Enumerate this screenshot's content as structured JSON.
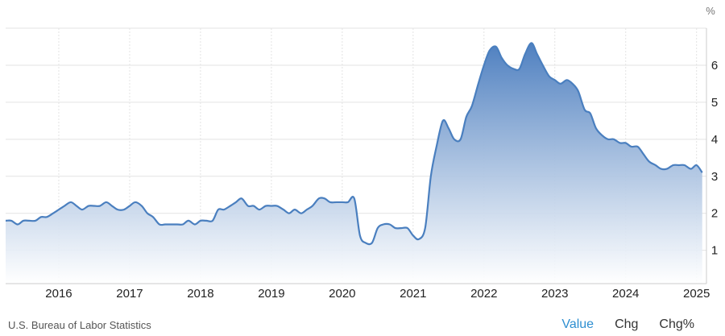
{
  "unit": "%",
  "source": "U.S. Bureau of Labor Statistics",
  "tabs": [
    {
      "label": "Value",
      "active": true
    },
    {
      "label": "Chg",
      "active": false
    },
    {
      "label": "Chg%",
      "active": false
    }
  ],
  "colors": {
    "line": "#4a7fbf",
    "area_top": "#4f80c0",
    "area_bottom": "#ffffff",
    "grid": "#e3e3e3",
    "active_tab": "#2e8fd1"
  },
  "chart_data": {
    "type": "area",
    "title": "",
    "xlabel": "",
    "ylabel": "",
    "grid": true,
    "xlim": [
      2015.25,
      2025.14
    ],
    "ylim": [
      0.1,
      7.0
    ],
    "x_ticks": [
      2016,
      2017,
      2018,
      2019,
      2020,
      2021,
      2022,
      2023,
      2024,
      2025
    ],
    "x_tick_labels": [
      "2016",
      "2017",
      "2018",
      "2019",
      "2020",
      "2021",
      "2022",
      "2023",
      "2024",
      "2025"
    ],
    "y_ticks": [
      1,
      2,
      3,
      4,
      5,
      6
    ],
    "y_tick_labels": [
      "1",
      "2",
      "3",
      "4",
      "5",
      "6"
    ],
    "series": [
      {
        "x": [
          2015.25,
          2015.33,
          2015.42,
          2015.5,
          2015.58,
          2015.67,
          2015.75,
          2015.83,
          2015.92,
          2016.0,
          2016.08,
          2016.17,
          2016.25,
          2016.33,
          2016.42,
          2016.5,
          2016.58,
          2016.67,
          2016.75,
          2016.83,
          2016.92,
          2017.0,
          2017.08,
          2017.17,
          2017.25,
          2017.33,
          2017.42,
          2017.5,
          2017.58,
          2017.67,
          2017.75,
          2017.83,
          2017.92,
          2018.0,
          2018.08,
          2018.17,
          2018.25,
          2018.33,
          2018.42,
          2018.5,
          2018.58,
          2018.67,
          2018.75,
          2018.83,
          2018.92,
          2019.0,
          2019.08,
          2019.17,
          2019.25,
          2019.33,
          2019.42,
          2019.5,
          2019.58,
          2019.67,
          2019.75,
          2019.83,
          2019.92,
          2020.0,
          2020.08,
          2020.17,
          2020.25,
          2020.33,
          2020.42,
          2020.5,
          2020.58,
          2020.67,
          2020.75,
          2020.83,
          2020.92,
          2021.0,
          2021.08,
          2021.17,
          2021.25,
          2021.33,
          2021.42,
          2021.5,
          2021.58,
          2021.67,
          2021.75,
          2021.83,
          2021.92,
          2022.0,
          2022.08,
          2022.17,
          2022.25,
          2022.33,
          2022.42,
          2022.5,
          2022.58,
          2022.67,
          2022.75,
          2022.83,
          2022.92,
          2023.0,
          2023.08,
          2023.17,
          2023.25,
          2023.33,
          2023.42,
          2023.5,
          2023.58,
          2023.67,
          2023.75,
          2023.83,
          2023.92,
          2024.0,
          2024.08,
          2024.17,
          2024.25,
          2024.33,
          2024.42,
          2024.5,
          2024.58,
          2024.67,
          2024.75,
          2024.83,
          2024.92,
          2025.0,
          2025.08
        ],
        "y": [
          1.8,
          1.8,
          1.7,
          1.8,
          1.8,
          1.8,
          1.9,
          1.9,
          2.0,
          2.1,
          2.2,
          2.3,
          2.2,
          2.1,
          2.2,
          2.2,
          2.2,
          2.3,
          2.2,
          2.1,
          2.1,
          2.2,
          2.3,
          2.2,
          2.0,
          1.9,
          1.7,
          1.7,
          1.7,
          1.7,
          1.7,
          1.8,
          1.7,
          1.8,
          1.8,
          1.8,
          2.1,
          2.1,
          2.2,
          2.3,
          2.4,
          2.2,
          2.2,
          2.1,
          2.2,
          2.2,
          2.2,
          2.1,
          2.0,
          2.1,
          2.0,
          2.1,
          2.2,
          2.4,
          2.4,
          2.3,
          2.3,
          2.3,
          2.3,
          2.4,
          1.4,
          1.2,
          1.2,
          1.6,
          1.7,
          1.7,
          1.6,
          1.6,
          1.6,
          1.4,
          1.3,
          1.6,
          3.0,
          3.8,
          4.5,
          4.3,
          4.0,
          4.0,
          4.6,
          4.9,
          5.5,
          6.0,
          6.4,
          6.5,
          6.2,
          6.0,
          5.9,
          5.9,
          6.3,
          6.6,
          6.3,
          6.0,
          5.7,
          5.6,
          5.5,
          5.6,
          5.5,
          5.3,
          4.8,
          4.7,
          4.3,
          4.1,
          4.0,
          4.0,
          3.9,
          3.9,
          3.8,
          3.8,
          3.6,
          3.4,
          3.3,
          3.2,
          3.2,
          3.3,
          3.3,
          3.3,
          3.2,
          3.3,
          3.1
        ]
      }
    ]
  }
}
